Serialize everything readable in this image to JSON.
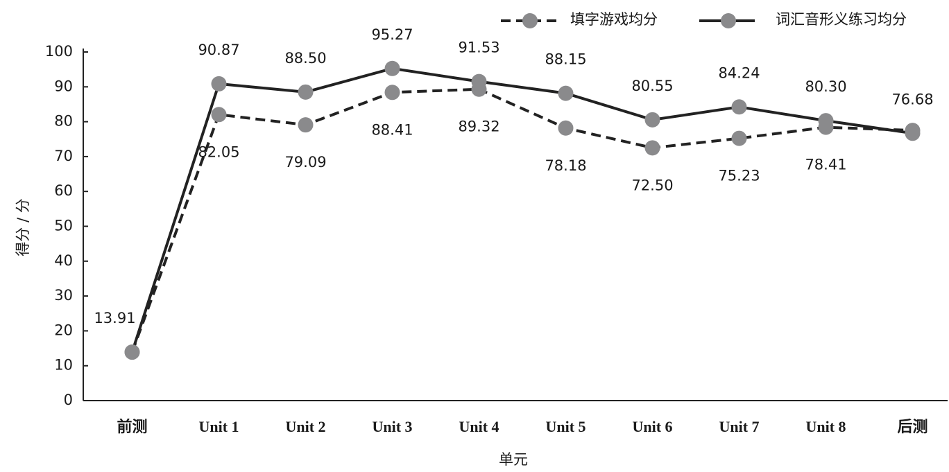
{
  "chart_data": {
    "type": "line",
    "x_label": "单元",
    "y_label": "得分 / 分",
    "categories": [
      "前测",
      "Unit 1",
      "Unit 2",
      "Unit 3",
      "Unit 4",
      "Unit 5",
      "Unit 6",
      "Unit 7",
      "Unit 8",
      "后测"
    ],
    "series": [
      {
        "name": "填字游戏均分",
        "color": "#222222",
        "marker_color": "#8a8a8c",
        "dash": true,
        "values": [
          13.91,
          82.05,
          79.09,
          88.41,
          89.32,
          78.18,
          72.5,
          75.23,
          78.41,
          77.5
        ],
        "value_labels": [
          null,
          "82.05",
          "79.09",
          "88.41",
          "89.32",
          "78.18",
          "72.50",
          "75.23",
          "78.41",
          null
        ]
      },
      {
        "name": "词汇音形义练习均分",
        "color": "#222222",
        "marker_color": "#8a8a8c",
        "dash": false,
        "values": [
          13.91,
          90.87,
          88.5,
          95.27,
          91.53,
          88.15,
          80.55,
          84.24,
          80.3,
          76.68
        ],
        "value_labels": [
          "13.91",
          "90.87",
          "88.50",
          "95.27",
          "91.53",
          "88.15",
          "80.55",
          "84.24",
          "80.30",
          "76.68"
        ]
      }
    ],
    "ylim": [
      0,
      100
    ],
    "yticks": [
      0,
      10,
      20,
      30,
      40,
      50,
      60,
      70,
      80,
      90,
      100
    ],
    "grid": false,
    "legend": "top-right"
  }
}
